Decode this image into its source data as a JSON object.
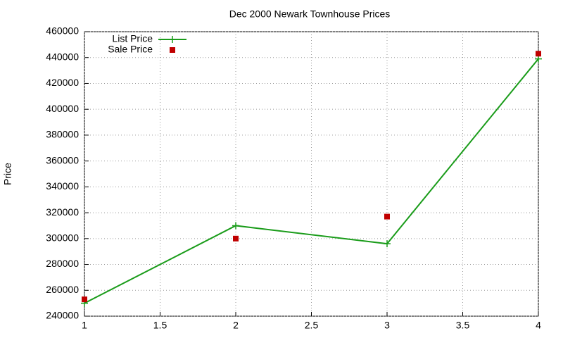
{
  "chart_data": {
    "type": "line",
    "title": "Dec 2000 Newark Townhouse Prices",
    "y_label": "Price",
    "x": [
      1,
      2,
      3,
      4
    ],
    "series": [
      {
        "name": "List Price",
        "color": "#1a9c1a",
        "style": "linespoints",
        "marker": "plus",
        "values": [
          250000,
          310000,
          296000,
          439000
        ]
      },
      {
        "name": "Sale Price",
        "color": "#c00000",
        "style": "points",
        "marker": "square",
        "values": [
          253000,
          300000,
          317000,
          443000
        ]
      }
    ],
    "xlim": [
      1,
      4
    ],
    "xticks": [
      1,
      1.5,
      2,
      2.5,
      3,
      3.5,
      4
    ],
    "ylim": [
      240000,
      460000
    ],
    "yticks": [
      240000,
      260000,
      280000,
      300000,
      320000,
      340000,
      360000,
      380000,
      400000,
      420000,
      440000,
      460000
    ],
    "grid": true,
    "legend": "top-left"
  }
}
